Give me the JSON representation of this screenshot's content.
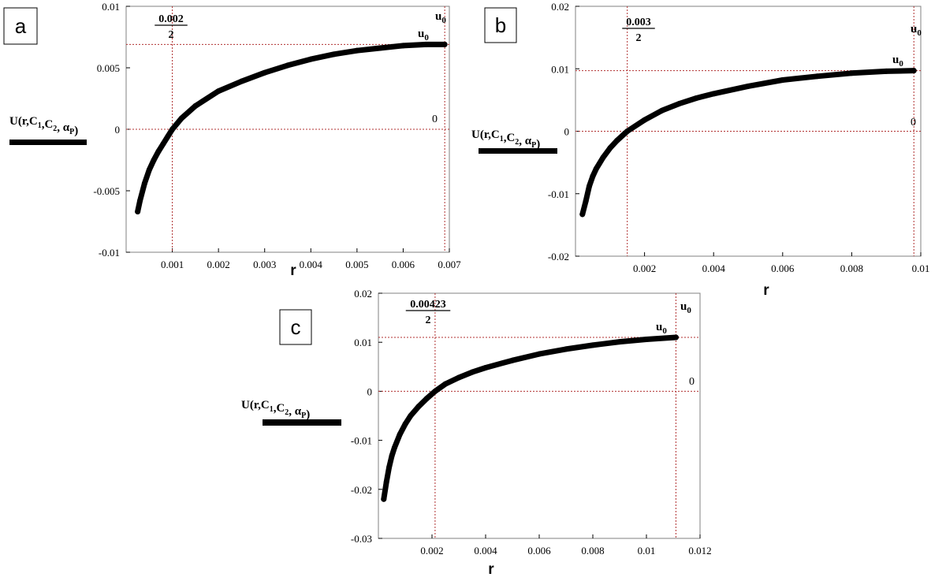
{
  "chart_data": [
    {
      "type": "line",
      "panel_label": "a",
      "xlabel": "r",
      "ylabel": "U(r,C1,C2,αP)",
      "xlim": [
        0,
        0.007
      ],
      "ylim": [
        -0.01,
        0.01
      ],
      "xticks": [
        "0.001",
        "0.002",
        "0.003",
        "0.004",
        "0.005",
        "0.006",
        "0.007"
      ],
      "xtick_values": [
        0.001,
        0.002,
        0.003,
        0.004,
        0.005,
        0.006,
        0.007
      ],
      "yticks": [
        "-0.01",
        "-0.005",
        "0",
        "0.005",
        "0.01"
      ],
      "ytick_values": [
        -0.01,
        -0.005,
        0,
        0.005,
        0.01
      ],
      "marker_x": 0.001,
      "marker_x_num": "0.002",
      "marker_x_den": "2",
      "boundary_x": 0.0069,
      "u0_value": 0.0069,
      "u0_label": "u",
      "u0_sub": "0",
      "zero_label": "0",
      "series": [
        {
          "x": [
            0.00025,
            0.0003,
            0.0004,
            0.0005,
            0.0006,
            0.0007,
            0.0008,
            0.0009,
            0.001,
            0.0012,
            0.0015,
            0.002,
            0.0025,
            0.003,
            0.0035,
            0.004,
            0.0045,
            0.005,
            0.0055,
            0.006,
            0.0065,
            0.0069
          ],
          "y": [
            -0.0067,
            -0.0058,
            -0.0044,
            -0.0033,
            -0.0025,
            -0.0018,
            -0.0012,
            -0.0006,
            0.0,
            0.0009,
            0.0019,
            0.0031,
            0.0039,
            0.0046,
            0.0052,
            0.0057,
            0.0061,
            0.0064,
            0.0066,
            0.0068,
            0.0069,
            0.0069
          ]
        }
      ]
    },
    {
      "type": "line",
      "panel_label": "b",
      "xlabel": "r",
      "ylabel": "U(r,C1,C2,αP)",
      "xlim": [
        0,
        0.01
      ],
      "ylim": [
        -0.02,
        0.02
      ],
      "xticks": [
        "0.002",
        "0.004",
        "0.006",
        "0.008",
        "0.01"
      ],
      "xtick_values": [
        0.002,
        0.004,
        0.006,
        0.008,
        0.01
      ],
      "yticks": [
        "-0.02",
        "-0.01",
        "0",
        "0.01",
        "0.02"
      ],
      "ytick_values": [
        -0.02,
        -0.01,
        0,
        0.01,
        0.02
      ],
      "marker_x": 0.0015,
      "marker_x_num": "0.003",
      "marker_x_den": "2",
      "boundary_x": 0.0098,
      "u0_value": 0.0097,
      "u0_label": "u",
      "u0_sub": "0",
      "zero_label": "0",
      "series": [
        {
          "x": [
            0.0002,
            0.0003,
            0.0004,
            0.0005,
            0.0006,
            0.0008,
            0.001,
            0.0012,
            0.0015,
            0.002,
            0.0025,
            0.003,
            0.0035,
            0.004,
            0.005,
            0.006,
            0.007,
            0.008,
            0.009,
            0.0098
          ],
          "y": [
            -0.0133,
            -0.0112,
            -0.0088,
            -0.0072,
            -0.006,
            -0.0042,
            -0.0027,
            -0.0015,
            0.0,
            0.0018,
            0.0033,
            0.0044,
            0.0053,
            0.006,
            0.0072,
            0.0082,
            0.0088,
            0.0093,
            0.0096,
            0.0097
          ]
        }
      ]
    },
    {
      "type": "line",
      "panel_label": "c",
      "xlabel": "r",
      "ylabel": "U(r,C1,C2,αP)",
      "xlim": [
        0,
        0.012
      ],
      "ylim": [
        -0.03,
        0.02
      ],
      "xticks": [
        "0.002",
        "0.004",
        "0.006",
        "0.008",
        "0.01",
        "0.012"
      ],
      "xtick_values": [
        0.002,
        0.004,
        0.006,
        0.008,
        0.01,
        0.012
      ],
      "yticks": [
        "-0.03",
        "-0.02",
        "-0.01",
        "0",
        "0.01",
        "0.02"
      ],
      "ytick_values": [
        -0.03,
        -0.02,
        -0.01,
        0,
        0.01,
        0.02
      ],
      "marker_x": 0.002115,
      "marker_x_num": "0.00423",
      "marker_x_den": "2",
      "boundary_x": 0.0111,
      "u0_value": 0.011,
      "u0_label": "u",
      "u0_sub": "0",
      "zero_label": "0",
      "series": [
        {
          "x": [
            0.0002,
            0.0003,
            0.0004,
            0.0005,
            0.0006,
            0.0008,
            0.001,
            0.0012,
            0.0015,
            0.0018,
            0.002115,
            0.0025,
            0.003,
            0.0035,
            0.004,
            0.005,
            0.006,
            0.007,
            0.008,
            0.009,
            0.01,
            0.0111
          ],
          "y": [
            -0.022,
            -0.0185,
            -0.0155,
            -0.0132,
            -0.0115,
            -0.0088,
            -0.0067,
            -0.005,
            -0.0031,
            -0.0015,
            0.0,
            0.0015,
            0.0028,
            0.0039,
            0.0048,
            0.0063,
            0.0076,
            0.0086,
            0.0094,
            0.0101,
            0.0106,
            0.011
          ]
        }
      ]
    }
  ]
}
